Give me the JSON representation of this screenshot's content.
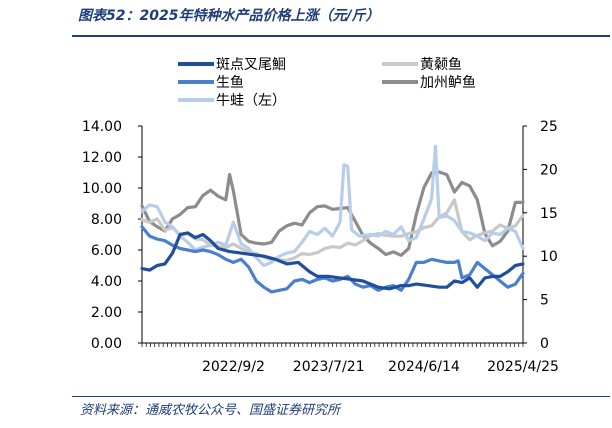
{
  "header": {
    "title": "图表52：2025年特种水产品价格上涨（元/斤）",
    "source": "资料来源：通威农牧公众号、国盛证券研究所"
  },
  "chart_data": {
    "type": "line",
    "xlabel": "",
    "ylabel": "",
    "x_ticks": [
      "2022/9/2",
      "2023/7/21",
      "2024/6/14",
      "2025/4/25"
    ],
    "y_left": {
      "ticks": [
        "0.00",
        "2.00",
        "4.00",
        "6.00",
        "8.00",
        "10.00",
        "12.00",
        "14.00"
      ],
      "range": [
        0,
        14
      ]
    },
    "y_right": {
      "ticks": [
        "0",
        "5",
        "10",
        "15",
        "20",
        "25"
      ],
      "range": [
        0,
        25
      ]
    },
    "x_range": [
      0,
      100
    ],
    "x_tick_positions": [
      24,
      49,
      74,
      100
    ],
    "grid": false,
    "legend_position": "top",
    "series": [
      {
        "name": "斑点叉尾鮰",
        "color": "#1f4e9b",
        "axis": "left",
        "points": [
          [
            0,
            4.8
          ],
          [
            2,
            4.7
          ],
          [
            4,
            5.0
          ],
          [
            6,
            5.1
          ],
          [
            8,
            5.8
          ],
          [
            10,
            7.0
          ],
          [
            12,
            7.1
          ],
          [
            14,
            6.8
          ],
          [
            16,
            7.0
          ],
          [
            18,
            6.6
          ],
          [
            20,
            6.1
          ],
          [
            23,
            5.9
          ],
          [
            26,
            5.8
          ],
          [
            29,
            5.7
          ],
          [
            32,
            5.6
          ],
          [
            35,
            5.4
          ],
          [
            38,
            5.1
          ],
          [
            41,
            5.2
          ],
          [
            44,
            4.6
          ],
          [
            46,
            4.3
          ],
          [
            49,
            4.3
          ],
          [
            52,
            4.2
          ],
          [
            55,
            4.1
          ],
          [
            58,
            4.0
          ],
          [
            60,
            3.8
          ],
          [
            62,
            3.6
          ],
          [
            65,
            3.5
          ],
          [
            68,
            3.7
          ],
          [
            70,
            3.7
          ],
          [
            72,
            3.8
          ],
          [
            75,
            3.7
          ],
          [
            78,
            3.6
          ],
          [
            80,
            3.6
          ],
          [
            82,
            4.0
          ],
          [
            84,
            3.9
          ],
          [
            86,
            4.2
          ],
          [
            88,
            3.6
          ],
          [
            90,
            4.2
          ],
          [
            92,
            4.3
          ],
          [
            94,
            4.3
          ],
          [
            96,
            4.6
          ],
          [
            98,
            5.0
          ],
          [
            100,
            5.1
          ]
        ]
      },
      {
        "name": "生鱼",
        "color": "#4a7fd0",
        "axis": "left",
        "points": [
          [
            0,
            7.5
          ],
          [
            2,
            6.9
          ],
          [
            4,
            6.7
          ],
          [
            6,
            6.6
          ],
          [
            8,
            6.3
          ],
          [
            10,
            6.1
          ],
          [
            12,
            6.0
          ],
          [
            14,
            5.9
          ],
          [
            16,
            6.0
          ],
          [
            18,
            5.9
          ],
          [
            20,
            5.7
          ],
          [
            22,
            5.4
          ],
          [
            24,
            5.2
          ],
          [
            26,
            5.4
          ],
          [
            28,
            4.9
          ],
          [
            30,
            4.0
          ],
          [
            32,
            3.6
          ],
          [
            34,
            3.3
          ],
          [
            36,
            3.4
          ],
          [
            38,
            3.5
          ],
          [
            40,
            4.0
          ],
          [
            42,
            4.1
          ],
          [
            44,
            3.9
          ],
          [
            46,
            4.1
          ],
          [
            48,
            4.2
          ],
          [
            50,
            4.0
          ],
          [
            52,
            4.1
          ],
          [
            54,
            4.3
          ],
          [
            56,
            3.8
          ],
          [
            58,
            3.6
          ],
          [
            60,
            3.7
          ],
          [
            62,
            3.4
          ],
          [
            64,
            3.6
          ],
          [
            66,
            3.7
          ],
          [
            68,
            3.4
          ],
          [
            70,
            4.1
          ],
          [
            72,
            5.2
          ],
          [
            74,
            5.2
          ],
          [
            76,
            5.4
          ],
          [
            78,
            5.3
          ],
          [
            80,
            5.2
          ],
          [
            82,
            5.2
          ],
          [
            83,
            5.3
          ],
          [
            84,
            4.2
          ],
          [
            86,
            4.4
          ],
          [
            88,
            5.2
          ],
          [
            90,
            4.8
          ],
          [
            92,
            4.4
          ],
          [
            94,
            4.0
          ],
          [
            96,
            3.6
          ],
          [
            98,
            3.8
          ],
          [
            100,
            4.5
          ]
        ]
      },
      {
        "name": "牛蛙（左）",
        "color": "#b8cdea",
        "axis": "left",
        "points": [
          [
            0,
            8.5
          ],
          [
            2,
            8.9
          ],
          [
            4,
            8.8
          ],
          [
            6,
            7.8
          ],
          [
            8,
            7.5
          ],
          [
            10,
            6.9
          ],
          [
            12,
            6.5
          ],
          [
            14,
            6.0
          ],
          [
            16,
            6.2
          ],
          [
            18,
            6.3
          ],
          [
            20,
            6.5
          ],
          [
            22,
            6.3
          ],
          [
            24,
            7.8
          ],
          [
            26,
            6.4
          ],
          [
            28,
            6.1
          ],
          [
            30,
            5.5
          ],
          [
            32,
            5.0
          ],
          [
            34,
            5.2
          ],
          [
            36,
            5.6
          ],
          [
            38,
            5.8
          ],
          [
            40,
            5.9
          ],
          [
            42,
            6.5
          ],
          [
            44,
            7.2
          ],
          [
            46,
            7.0
          ],
          [
            48,
            7.4
          ],
          [
            50,
            6.9
          ],
          [
            52,
            7.8
          ],
          [
            53,
            11.5
          ],
          [
            54,
            11.4
          ],
          [
            55,
            7.3
          ],
          [
            57,
            6.9
          ],
          [
            60,
            7.0
          ],
          [
            62,
            6.9
          ],
          [
            64,
            7.2
          ],
          [
            66,
            7.0
          ],
          [
            68,
            7.5
          ],
          [
            70,
            6.6
          ],
          [
            72,
            6.8
          ],
          [
            74,
            8.0
          ],
          [
            76,
            9.3
          ],
          [
            77,
            12.7
          ],
          [
            78,
            8.1
          ],
          [
            80,
            8.2
          ],
          [
            82,
            7.9
          ],
          [
            84,
            7.2
          ],
          [
            86,
            7.1
          ],
          [
            88,
            6.9
          ],
          [
            90,
            6.6
          ],
          [
            92,
            7.1
          ],
          [
            94,
            7.0
          ],
          [
            96,
            7.4
          ],
          [
            98,
            7.2
          ],
          [
            100,
            6.1
          ]
        ]
      },
      {
        "name": "黄颡鱼",
        "color": "#c8c8c8",
        "axis": "right",
        "points": [
          [
            0,
            14.2
          ],
          [
            2,
            13.9
          ],
          [
            4,
            14.3
          ],
          [
            6,
            13.0
          ],
          [
            8,
            13.3
          ],
          [
            10,
            12.5
          ],
          [
            12,
            12.6
          ],
          [
            14,
            12.0
          ],
          [
            16,
            11.9
          ],
          [
            18,
            11.3
          ],
          [
            20,
            11.1
          ],
          [
            22,
            11.0
          ],
          [
            24,
            11.4
          ],
          [
            26,
            10.9
          ],
          [
            28,
            10.5
          ],
          [
            30,
            10.3
          ],
          [
            32,
            9.9
          ],
          [
            34,
            9.6
          ],
          [
            36,
            9.6
          ],
          [
            38,
            9.5
          ],
          [
            40,
            9.8
          ],
          [
            42,
            10.3
          ],
          [
            44,
            10.2
          ],
          [
            46,
            10.4
          ],
          [
            48,
            10.9
          ],
          [
            50,
            11.1
          ],
          [
            52,
            11.0
          ],
          [
            54,
            11.5
          ],
          [
            56,
            11.3
          ],
          [
            58,
            11.8
          ],
          [
            60,
            12.4
          ],
          [
            62,
            12.6
          ],
          [
            64,
            12.4
          ],
          [
            66,
            12.3
          ],
          [
            68,
            12.3
          ],
          [
            70,
            12.6
          ],
          [
            72,
            12.8
          ],
          [
            74,
            13.3
          ],
          [
            76,
            13.5
          ],
          [
            78,
            14.5
          ],
          [
            80,
            15.0
          ],
          [
            82,
            16.5
          ],
          [
            84,
            12.8
          ],
          [
            86,
            11.9
          ],
          [
            88,
            12.4
          ],
          [
            90,
            12.7
          ],
          [
            92,
            12.9
          ],
          [
            94,
            13.6
          ],
          [
            96,
            13.2
          ],
          [
            98,
            13.5
          ],
          [
            100,
            14.7
          ]
        ]
      },
      {
        "name": "加州鲈鱼",
        "color": "#8c8c8c",
        "axis": "right",
        "points": [
          [
            0,
            15.8
          ],
          [
            2,
            14.0
          ],
          [
            4,
            13.4
          ],
          [
            6,
            12.9
          ],
          [
            8,
            14.3
          ],
          [
            10,
            14.8
          ],
          [
            12,
            15.6
          ],
          [
            14,
            15.7
          ],
          [
            16,
            17.0
          ],
          [
            18,
            17.6
          ],
          [
            20,
            16.9
          ],
          [
            22,
            16.5
          ],
          [
            23,
            19.4
          ],
          [
            24,
            17.5
          ],
          [
            26,
            12.5
          ],
          [
            28,
            11.7
          ],
          [
            30,
            11.5
          ],
          [
            32,
            11.4
          ],
          [
            34,
            11.6
          ],
          [
            36,
            12.9
          ],
          [
            38,
            13.5
          ],
          [
            40,
            13.8
          ],
          [
            42,
            13.6
          ],
          [
            44,
            15.0
          ],
          [
            46,
            15.7
          ],
          [
            48,
            15.8
          ],
          [
            50,
            15.4
          ],
          [
            52,
            15.5
          ],
          [
            54,
            15.6
          ],
          [
            56,
            14.0
          ],
          [
            58,
            12.4
          ],
          [
            60,
            11.5
          ],
          [
            62,
            10.9
          ],
          [
            64,
            10.2
          ],
          [
            66,
            10.5
          ],
          [
            68,
            10.1
          ],
          [
            70,
            10.9
          ],
          [
            72,
            14.8
          ],
          [
            74,
            17.9
          ],
          [
            76,
            19.6
          ],
          [
            78,
            19.7
          ],
          [
            80,
            19.4
          ],
          [
            82,
            17.4
          ],
          [
            84,
            18.5
          ],
          [
            86,
            18.1
          ],
          [
            88,
            16.5
          ],
          [
            90,
            12.6
          ],
          [
            92,
            11.2
          ],
          [
            94,
            11.7
          ],
          [
            96,
            12.9
          ],
          [
            98,
            16.2
          ],
          [
            100,
            16.2
          ]
        ]
      }
    ]
  }
}
